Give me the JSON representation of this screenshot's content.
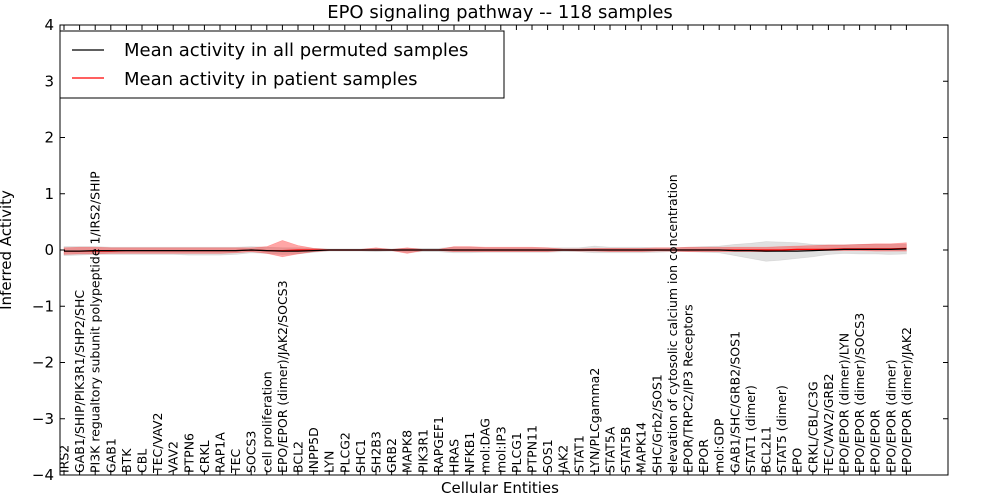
{
  "chart_data": {
    "type": "line",
    "title": "EPO signaling pathway -- 118 samples",
    "xlabel": "Cellular Entities",
    "ylabel": "Inferred Activity",
    "ylim": [
      -4,
      4
    ],
    "yticks": [
      {
        "value": -4,
        "label": "−4"
      },
      {
        "value": -3,
        "label": "−3"
      },
      {
        "value": -2,
        "label": "−2"
      },
      {
        "value": -1,
        "label": "−1"
      },
      {
        "value": 0,
        "label": "0"
      },
      {
        "value": 1,
        "label": "1"
      },
      {
        "value": 2,
        "label": "2"
      },
      {
        "value": 3,
        "label": "3"
      },
      {
        "value": 4,
        "label": "4"
      }
    ],
    "grid": false,
    "legend_position": "top-left",
    "categories": [
      "IRS2",
      "GAB1/SHIP/PIK3R1/SHP2/SHC",
      "PI3K regualtory subunit polypeptide 1/IRS2/SHIP",
      "GAB1",
      "BTK",
      "CBL",
      "TEC/VAV2",
      "VAV2",
      "PTPN6",
      "CRKL",
      "RAP1A",
      "TEC",
      "SOCS3",
      "cell proliferation",
      "EPO/EPOR (dimer)/JAK2/SOCS3",
      "BCL2",
      "INPP5D",
      "LYN",
      "PLCG2",
      "SHC1",
      "SH2B3",
      "GRB2",
      "MAPK8",
      "PIK3R1",
      "RAPGEF1",
      "HRAS",
      "NFKB1",
      "mol:DAG",
      "mol:IP3",
      "PLCG1",
      "PTPN11",
      "SOS1",
      "JAK2",
      "STAT1",
      "LYN/PLCgamma2",
      "STAT5A",
      "STAT5B",
      "MAPK14",
      "SHC/Grb2/SOS1",
      "elevation of cytosolic calcium ion concentration",
      "EPOR/TRPC2/IP3 Receptors",
      "EPOR",
      "mol:GDP",
      "GAB1/SHC/GRB2/SOS1",
      "STAT1 (dimer)",
      "BCL2L1",
      "STAT5 (dimer)",
      "EPO",
      "CRKL/CBL/C3G",
      "TEC/VAV2/GRB2",
      "EPO/EPOR (dimer)/LYN",
      "EPO/EPOR (dimer)/SOCS3",
      "EPO/EPOR",
      "EPO/EPOR (dimer)",
      "EPO/EPOR (dimer)/JAK2"
    ],
    "series": [
      {
        "name": "Mean activity in all permuted samples",
        "color": "#000000",
        "values": [
          -0.02,
          -0.02,
          -0.01,
          -0.01,
          -0.01,
          -0.01,
          -0.01,
          -0.01,
          -0.01,
          -0.01,
          -0.01,
          -0.01,
          0.0,
          -0.01,
          -0.02,
          -0.02,
          -0.01,
          0.0,
          0.0,
          0.0,
          0.0,
          0.0,
          0.0,
          0.0,
          0.0,
          0.0,
          0.0,
          0.0,
          0.0,
          0.0,
          0.0,
          0.0,
          0.0,
          0.0,
          0.0,
          0.0,
          0.0,
          0.0,
          0.0,
          0.0,
          0.0,
          0.0,
          0.0,
          -0.01,
          -0.01,
          -0.02,
          -0.02,
          -0.02,
          -0.01,
          0.0,
          0.01,
          0.01,
          0.01,
          0.01,
          0.02
        ],
        "band_lower": [
          -0.1,
          -0.09,
          -0.08,
          -0.08,
          -0.08,
          -0.08,
          -0.08,
          -0.08,
          -0.09,
          -0.09,
          -0.09,
          -0.08,
          -0.05,
          -0.06,
          -0.08,
          -0.07,
          -0.04,
          -0.02,
          -0.02,
          -0.02,
          -0.03,
          -0.02,
          -0.04,
          -0.03,
          -0.03,
          -0.05,
          -0.05,
          -0.04,
          -0.04,
          -0.04,
          -0.04,
          -0.04,
          -0.03,
          -0.03,
          -0.05,
          -0.05,
          -0.05,
          -0.05,
          -0.04,
          -0.03,
          -0.03,
          -0.04,
          -0.05,
          -0.1,
          -0.15,
          -0.2,
          -0.18,
          -0.15,
          -0.12,
          -0.08,
          -0.06,
          -0.07,
          -0.07,
          -0.08,
          -0.07
        ],
        "band_upper": [
          0.06,
          0.06,
          0.06,
          0.05,
          0.05,
          0.05,
          0.05,
          0.05,
          0.05,
          0.05,
          0.05,
          0.05,
          0.06,
          0.05,
          0.04,
          0.04,
          0.03,
          0.02,
          0.02,
          0.02,
          0.03,
          0.02,
          0.03,
          0.03,
          0.03,
          0.05,
          0.05,
          0.04,
          0.04,
          0.04,
          0.04,
          0.04,
          0.04,
          0.04,
          0.07,
          0.05,
          0.05,
          0.05,
          0.04,
          0.04,
          0.05,
          0.06,
          0.07,
          0.1,
          0.12,
          0.15,
          0.14,
          0.13,
          0.1,
          0.09,
          0.09,
          0.1,
          0.1,
          0.1,
          0.1
        ]
      },
      {
        "name": "Mean activity in patient samples",
        "color": "#ff0000",
        "values": [
          -0.02,
          -0.02,
          -0.02,
          -0.02,
          -0.01,
          -0.01,
          -0.01,
          -0.01,
          -0.01,
          -0.01,
          -0.01,
          -0.01,
          0.0,
          -0.01,
          -0.01,
          0.0,
          0.0,
          0.0,
          0.0,
          0.0,
          0.0,
          0.0,
          0.0,
          0.0,
          0.0,
          0.0,
          0.0,
          0.0,
          0.0,
          0.0,
          0.0,
          0.0,
          0.0,
          0.0,
          0.0,
          0.0,
          0.0,
          0.0,
          0.0,
          0.0,
          0.0,
          0.0,
          0.0,
          0.0,
          0.0,
          0.0,
          0.0,
          0.01,
          0.01,
          0.01,
          0.02,
          0.02,
          0.02,
          0.02,
          0.03
        ],
        "band_lower": [
          -0.08,
          -0.07,
          -0.07,
          -0.06,
          -0.06,
          -0.06,
          -0.06,
          -0.06,
          -0.06,
          -0.06,
          -0.06,
          -0.05,
          -0.03,
          -0.06,
          -0.12,
          -0.07,
          -0.03,
          -0.01,
          -0.01,
          -0.01,
          -0.01,
          -0.01,
          -0.06,
          -0.01,
          -0.01,
          -0.03,
          -0.03,
          -0.03,
          -0.03,
          -0.03,
          -0.03,
          -0.03,
          -0.01,
          -0.02,
          -0.02,
          -0.03,
          -0.03,
          -0.03,
          -0.02,
          -0.02,
          -0.03,
          -0.03,
          -0.03,
          -0.03,
          -0.03,
          -0.03,
          -0.02,
          -0.02,
          -0.01,
          -0.01,
          -0.01,
          -0.01,
          -0.02,
          -0.02,
          -0.02
        ],
        "band_upper": [
          0.04,
          0.05,
          0.05,
          0.04,
          0.04,
          0.04,
          0.04,
          0.04,
          0.04,
          0.04,
          0.04,
          0.04,
          0.04,
          0.06,
          0.17,
          0.08,
          0.03,
          0.01,
          0.01,
          0.01,
          0.04,
          0.01,
          0.04,
          0.01,
          0.01,
          0.06,
          0.06,
          0.05,
          0.05,
          0.05,
          0.05,
          0.04,
          0.02,
          0.02,
          0.03,
          0.03,
          0.03,
          0.03,
          0.04,
          0.04,
          0.05,
          0.05,
          0.05,
          0.05,
          0.05,
          0.05,
          0.06,
          0.07,
          0.08,
          0.09,
          0.09,
          0.1,
          0.11,
          0.11,
          0.13
        ]
      }
    ]
  }
}
